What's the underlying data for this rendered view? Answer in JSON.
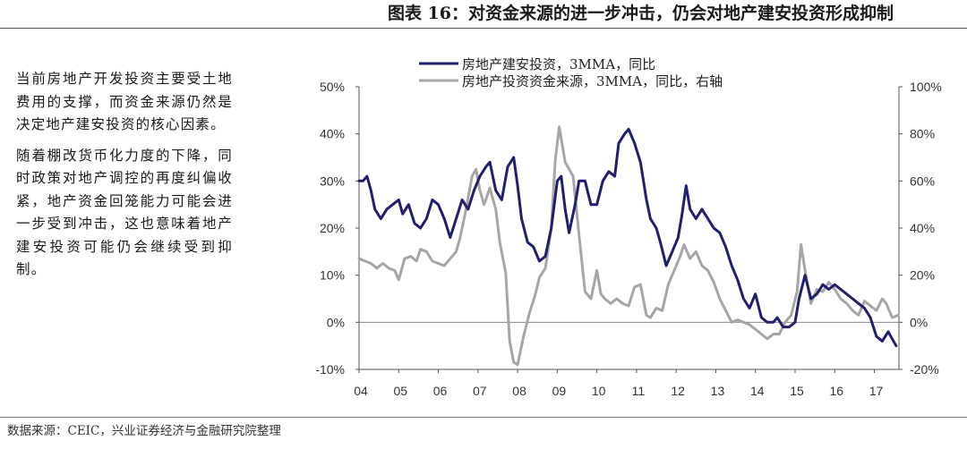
{
  "header": {
    "title": "图表 16：对资金来源的进一步冲击，仍会对地产建安投资形成抑制"
  },
  "sidebar": {
    "paragraph_1": "当前房地产开发投资主要受土地费用的支撑，而资金来源仍然是决定地产建安投资的核心因素。",
    "paragraph_2": "随着棚改货币化力度的下降，同时政策对地产调控的再度纠偏收紧，地产资金回笼能力可能会进一步受到冲击，这也意味着地产建安投资可能仍会继续受到抑制。"
  },
  "footer": {
    "source": "数据来源：CEIC，兴业证券经济与金融研究院整理"
  },
  "chart_data": {
    "type": "line",
    "x_ticks": [
      "04",
      "05",
      "06",
      "07",
      "08",
      "09",
      "10",
      "11",
      "12",
      "13",
      "14",
      "15",
      "16",
      "17"
    ],
    "x_range": [
      2004.0,
      2017.62
    ],
    "left_axis": {
      "ylim": [
        -10,
        50
      ],
      "ticks": [
        -10,
        0,
        10,
        20,
        30,
        40,
        50
      ],
      "tick_labels": [
        "-10%",
        "0%",
        "10%",
        "20%",
        "30%",
        "40%",
        "50%"
      ]
    },
    "right_axis": {
      "ylim": [
        -20,
        100
      ],
      "ticks": [
        -20,
        0,
        20,
        40,
        60,
        80,
        100
      ],
      "tick_labels": [
        "-20%",
        "0%",
        "20%",
        "40%",
        "60%",
        "80%",
        "100%"
      ]
    },
    "series": [
      {
        "name": "房地产建安投资，3MMA，同比",
        "axis": "left",
        "color": "#1f1f6e",
        "points": [
          [
            2004.0,
            30
          ],
          [
            2004.1,
            30
          ],
          [
            2004.2,
            31
          ],
          [
            2004.3,
            28
          ],
          [
            2004.4,
            24
          ],
          [
            2004.55,
            22
          ],
          [
            2004.7,
            24
          ],
          [
            2004.85,
            25
          ],
          [
            2005.0,
            26
          ],
          [
            2005.1,
            23
          ],
          [
            2005.25,
            25
          ],
          [
            2005.4,
            21
          ],
          [
            2005.55,
            20
          ],
          [
            2005.7,
            22
          ],
          [
            2005.85,
            26
          ],
          [
            2006.0,
            25
          ],
          [
            2006.15,
            22
          ],
          [
            2006.3,
            18
          ],
          [
            2006.45,
            22
          ],
          [
            2006.6,
            26
          ],
          [
            2006.75,
            24
          ],
          [
            2006.9,
            28
          ],
          [
            2007.05,
            31
          ],
          [
            2007.2,
            33
          ],
          [
            2007.3,
            34
          ],
          [
            2007.45,
            28
          ],
          [
            2007.6,
            26
          ],
          [
            2007.75,
            33
          ],
          [
            2007.9,
            35
          ],
          [
            2008.0,
            29
          ],
          [
            2008.1,
            22
          ],
          [
            2008.25,
            17
          ],
          [
            2008.4,
            16
          ],
          [
            2008.55,
            13
          ],
          [
            2008.7,
            14
          ],
          [
            2008.85,
            20
          ],
          [
            2009.0,
            30
          ],
          [
            2009.1,
            31
          ],
          [
            2009.2,
            24
          ],
          [
            2009.3,
            19
          ],
          [
            2009.45,
            25
          ],
          [
            2009.55,
            30
          ],
          [
            2009.7,
            30
          ],
          [
            2009.85,
            25
          ],
          [
            2010.0,
            25
          ],
          [
            2010.15,
            30
          ],
          [
            2010.3,
            32
          ],
          [
            2010.45,
            31
          ],
          [
            2010.55,
            38
          ],
          [
            2010.7,
            40
          ],
          [
            2010.8,
            41
          ],
          [
            2010.95,
            38
          ],
          [
            2011.1,
            34
          ],
          [
            2011.25,
            26
          ],
          [
            2011.35,
            22
          ],
          [
            2011.5,
            20
          ],
          [
            2011.6,
            17
          ],
          [
            2011.75,
            12
          ],
          [
            2011.9,
            15
          ],
          [
            2012.05,
            18
          ],
          [
            2012.15,
            23
          ],
          [
            2012.25,
            29
          ],
          [
            2012.35,
            24
          ],
          [
            2012.5,
            22
          ],
          [
            2012.65,
            24
          ],
          [
            2012.8,
            22
          ],
          [
            2012.95,
            20
          ],
          [
            2013.1,
            19
          ],
          [
            2013.25,
            16
          ],
          [
            2013.4,
            12
          ],
          [
            2013.55,
            9
          ],
          [
            2013.7,
            5
          ],
          [
            2013.85,
            3
          ],
          [
            2014.0,
            6
          ],
          [
            2014.15,
            1
          ],
          [
            2014.3,
            0
          ],
          [
            2014.45,
            0
          ],
          [
            2014.55,
            1
          ],
          [
            2014.7,
            -1
          ],
          [
            2014.85,
            -1
          ],
          [
            2015.0,
            0
          ],
          [
            2015.1,
            5
          ],
          [
            2015.25,
            10
          ],
          [
            2015.4,
            5
          ],
          [
            2015.55,
            6
          ],
          [
            2015.7,
            8
          ],
          [
            2015.85,
            7
          ],
          [
            2016.0,
            8
          ],
          [
            2016.15,
            7
          ],
          [
            2016.3,
            6
          ],
          [
            2016.45,
            5
          ],
          [
            2016.6,
            4
          ],
          [
            2016.75,
            3
          ],
          [
            2016.9,
            1
          ],
          [
            2017.05,
            -3
          ],
          [
            2017.2,
            -4
          ],
          [
            2017.35,
            -2
          ],
          [
            2017.55,
            -5
          ]
        ]
      },
      {
        "name": "房地产投资资金来源，3MMA，同比，右轴",
        "axis": "right",
        "color": "#a6a6a6",
        "points": [
          [
            2004.0,
            27
          ],
          [
            2004.15,
            26
          ],
          [
            2004.3,
            25
          ],
          [
            2004.45,
            23
          ],
          [
            2004.6,
            25
          ],
          [
            2004.75,
            23
          ],
          [
            2004.9,
            22
          ],
          [
            2005.0,
            18
          ],
          [
            2005.15,
            27
          ],
          [
            2005.3,
            28
          ],
          [
            2005.45,
            26
          ],
          [
            2005.55,
            31
          ],
          [
            2005.7,
            30
          ],
          [
            2005.85,
            26
          ],
          [
            2006.0,
            25
          ],
          [
            2006.15,
            24
          ],
          [
            2006.3,
            27
          ],
          [
            2006.45,
            30
          ],
          [
            2006.55,
            36
          ],
          [
            2006.7,
            48
          ],
          [
            2006.85,
            62
          ],
          [
            2006.95,
            65
          ],
          [
            2007.05,
            56
          ],
          [
            2007.15,
            50
          ],
          [
            2007.3,
            57
          ],
          [
            2007.45,
            48
          ],
          [
            2007.55,
            34
          ],
          [
            2007.7,
            21
          ],
          [
            2007.8,
            -8
          ],
          [
            2007.9,
            -17
          ],
          [
            2008.0,
            -18
          ],
          [
            2008.15,
            -6
          ],
          [
            2008.3,
            4
          ],
          [
            2008.45,
            12
          ],
          [
            2008.55,
            19
          ],
          [
            2008.7,
            23
          ],
          [
            2008.85,
            40
          ],
          [
            2008.95,
            69
          ],
          [
            2009.05,
            83
          ],
          [
            2009.2,
            68
          ],
          [
            2009.4,
            62
          ],
          [
            2009.55,
            37
          ],
          [
            2009.7,
            13
          ],
          [
            2009.85,
            10
          ],
          [
            2010.0,
            22
          ],
          [
            2010.1,
            12
          ],
          [
            2010.2,
            10
          ],
          [
            2010.35,
            8
          ],
          [
            2010.5,
            10
          ],
          [
            2010.65,
            8
          ],
          [
            2010.8,
            7
          ],
          [
            2010.95,
            15
          ],
          [
            2011.1,
            16
          ],
          [
            2011.25,
            3
          ],
          [
            2011.35,
            2
          ],
          [
            2011.5,
            6
          ],
          [
            2011.65,
            5
          ],
          [
            2011.8,
            16
          ],
          [
            2011.95,
            22
          ],
          [
            2012.1,
            28
          ],
          [
            2012.2,
            33
          ],
          [
            2012.35,
            27
          ],
          [
            2012.5,
            30
          ],
          [
            2012.65,
            24
          ],
          [
            2012.8,
            22
          ],
          [
            2012.95,
            17
          ],
          [
            2013.1,
            10
          ],
          [
            2013.25,
            5
          ],
          [
            2013.4,
            0
          ],
          [
            2013.55,
            1
          ],
          [
            2013.7,
            0
          ],
          [
            2013.85,
            -1
          ],
          [
            2014.0,
            -3
          ],
          [
            2014.15,
            -5
          ],
          [
            2014.3,
            -7
          ],
          [
            2014.45,
            -5
          ],
          [
            2014.6,
            -5
          ],
          [
            2014.75,
            0
          ],
          [
            2014.9,
            3
          ],
          [
            2015.05,
            13
          ],
          [
            2015.15,
            33
          ],
          [
            2015.25,
            22
          ],
          [
            2015.4,
            8
          ],
          [
            2015.55,
            14
          ],
          [
            2015.7,
            13
          ],
          [
            2015.85,
            17
          ],
          [
            2016.0,
            14
          ],
          [
            2016.15,
            10
          ],
          [
            2016.3,
            8
          ],
          [
            2016.45,
            5
          ],
          [
            2016.6,
            3
          ],
          [
            2016.75,
            9
          ],
          [
            2016.9,
            7
          ],
          [
            2017.05,
            5
          ],
          [
            2017.2,
            10
          ],
          [
            2017.3,
            8
          ],
          [
            2017.45,
            2
          ],
          [
            2017.6,
            3
          ]
        ]
      }
    ]
  }
}
